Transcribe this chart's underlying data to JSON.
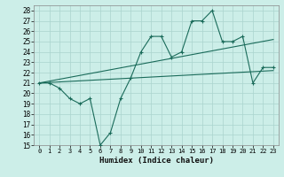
{
  "xlabel": "Humidex (Indice chaleur)",
  "bg_color": "#cceee8",
  "line_color": "#1a6b5a",
  "grid_color": "#aad4ce",
  "xlim": [
    -0.5,
    23.5
  ],
  "ylim": [
    15,
    28.5
  ],
  "yticks": [
    15,
    16,
    17,
    18,
    19,
    20,
    21,
    22,
    23,
    24,
    25,
    26,
    27,
    28
  ],
  "xticks": [
    0,
    1,
    2,
    3,
    4,
    5,
    6,
    7,
    8,
    9,
    10,
    11,
    12,
    13,
    14,
    15,
    16,
    17,
    18,
    19,
    20,
    21,
    22,
    23
  ],
  "main_x": [
    0,
    1,
    2,
    3,
    4,
    5,
    6,
    7,
    8,
    9,
    10,
    11,
    12,
    13,
    14,
    15,
    16,
    17,
    18,
    19,
    20,
    21,
    22,
    23
  ],
  "main_y": [
    21,
    21,
    20.5,
    19.5,
    19,
    19.5,
    15,
    16.2,
    19.5,
    21.5,
    24,
    25.5,
    25.5,
    23.5,
    24,
    27,
    27,
    28,
    25,
    25,
    25.5,
    21,
    22.5,
    22.5
  ],
  "trend1_x": [
    0,
    23
  ],
  "trend1_y": [
    21.0,
    25.2
  ],
  "trend2_x": [
    0,
    23
  ],
  "trend2_y": [
    21.0,
    22.2
  ]
}
